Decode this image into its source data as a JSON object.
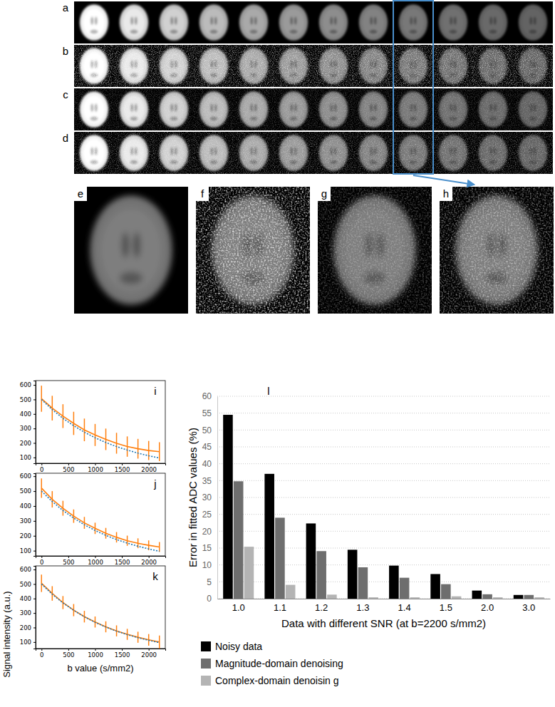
{
  "image_panels": {
    "rows": [
      "a",
      "b",
      "c",
      "d"
    ],
    "zooms": [
      "e",
      "f",
      "g",
      "h"
    ]
  },
  "chart_data": [
    {
      "type": "line",
      "annotation": "i",
      "x": [
        0,
        200,
        400,
        600,
        800,
        1000,
        1200,
        1400,
        1600,
        1800,
        2000,
        2200
      ],
      "xlim": [
        -110,
        2310
      ],
      "xticks": [
        0,
        500,
        1000,
        1500,
        2000
      ],
      "ylim": [
        60,
        630
      ],
      "yticks": [
        100,
        200,
        300,
        400,
        500,
        600
      ],
      "series": [
        {
          "color": "#ff7f0e",
          "line_style": "solid",
          "values": [
            505,
            440,
            385,
            335,
            290,
            255,
            225,
            198,
            175,
            160,
            148,
            140
          ],
          "errors": [
            90,
            85,
            82,
            80,
            78,
            76,
            74,
            72,
            70,
            68,
            66,
            65
          ]
        },
        {
          "color": "#1f77b4",
          "line_style": "dotted",
          "values": [
            500,
            430,
            370,
            319,
            274,
            236,
            203,
            175,
            151,
            130,
            112,
            96
          ]
        }
      ]
    },
    {
      "type": "line",
      "annotation": "j",
      "x": [
        0,
        200,
        400,
        600,
        800,
        1000,
        1200,
        1400,
        1600,
        1800,
        2000,
        2200
      ],
      "xlim": [
        -110,
        2310
      ],
      "xticks": [
        0,
        500,
        1000,
        1500,
        2000
      ],
      "ylim": [
        65,
        620
      ],
      "yticks": [
        100,
        200,
        300,
        400,
        500,
        600
      ],
      "series": [
        {
          "color": "#ff7f0e",
          "line_style": "solid",
          "values": [
            520,
            445,
            385,
            332,
            287,
            250,
            217,
            190,
            167,
            150,
            136,
            125
          ],
          "errors": [
            65,
            55,
            50,
            45,
            40,
            38,
            36,
            35,
            34,
            33,
            33,
            33
          ]
        },
        {
          "color": "#1f77b4",
          "line_style": "dotted",
          "values": [
            500,
            430,
            370,
            319,
            274,
            236,
            203,
            175,
            151,
            130,
            112,
            96
          ]
        }
      ]
    },
    {
      "type": "line",
      "annotation": "k",
      "x": [
        0,
        200,
        400,
        600,
        800,
        1000,
        1200,
        1400,
        1600,
        1800,
        2000,
        2200
      ],
      "xlim": [
        -110,
        2310
      ],
      "xticks": [
        0,
        500,
        1000,
        1500,
        2000
      ],
      "ylim": [
        55,
        625
      ],
      "yticks": [
        100,
        200,
        300,
        400,
        500,
        600
      ],
      "x_label": "b value (s/mm2)",
      "y_label": "Signal intensity (a.u.)",
      "series": [
        {
          "color": "#ff7f0e",
          "line_style": "solid",
          "values": [
            505,
            435,
            372,
            320,
            275,
            238,
            205,
            177,
            153,
            133,
            115,
            100
          ],
          "errors": [
            60,
            50,
            45,
            42,
            40,
            38,
            38,
            38,
            38,
            38,
            40,
            45
          ]
        },
        {
          "color": "#1f77b4",
          "line_style": "dotted",
          "values": [
            500,
            430,
            370,
            319,
            274,
            236,
            203,
            175,
            151,
            130,
            112,
            96
          ]
        }
      ]
    },
    {
      "type": "bar",
      "annotation": "l",
      "categories": [
        "1.0",
        "1.1",
        "1.2",
        "1.3",
        "1.4",
        "1.5",
        "2.0",
        "3.0"
      ],
      "x_label": "Data with different SNR (at b=2200 s/mm2)",
      "y_label": "Error in fitted ADC values (%)",
      "ylim": [
        0,
        60
      ],
      "yticks": [
        0,
        5,
        10,
        15,
        20,
        25,
        30,
        35,
        40,
        45,
        50,
        55,
        60
      ],
      "grid": true,
      "legend": "bottom",
      "series": [
        {
          "name": "Noisy data",
          "color": "#000000",
          "values": [
            54.5,
            37,
            22.3,
            14.5,
            9.8,
            7.3,
            2.4,
            1.1
          ]
        },
        {
          "name": "Magnitude-domain denoising",
          "color": "#6e6e6e",
          "values": [
            34.8,
            24,
            14.1,
            9.3,
            6.2,
            4.3,
            1.3,
            1.1
          ]
        },
        {
          "name": "Complex-domain denoisin g",
          "color": "#b4b4b4",
          "values": [
            15.4,
            4.1,
            1.2,
            0.4,
            0.4,
            0.7,
            0.4,
            0.4
          ]
        }
      ]
    }
  ]
}
